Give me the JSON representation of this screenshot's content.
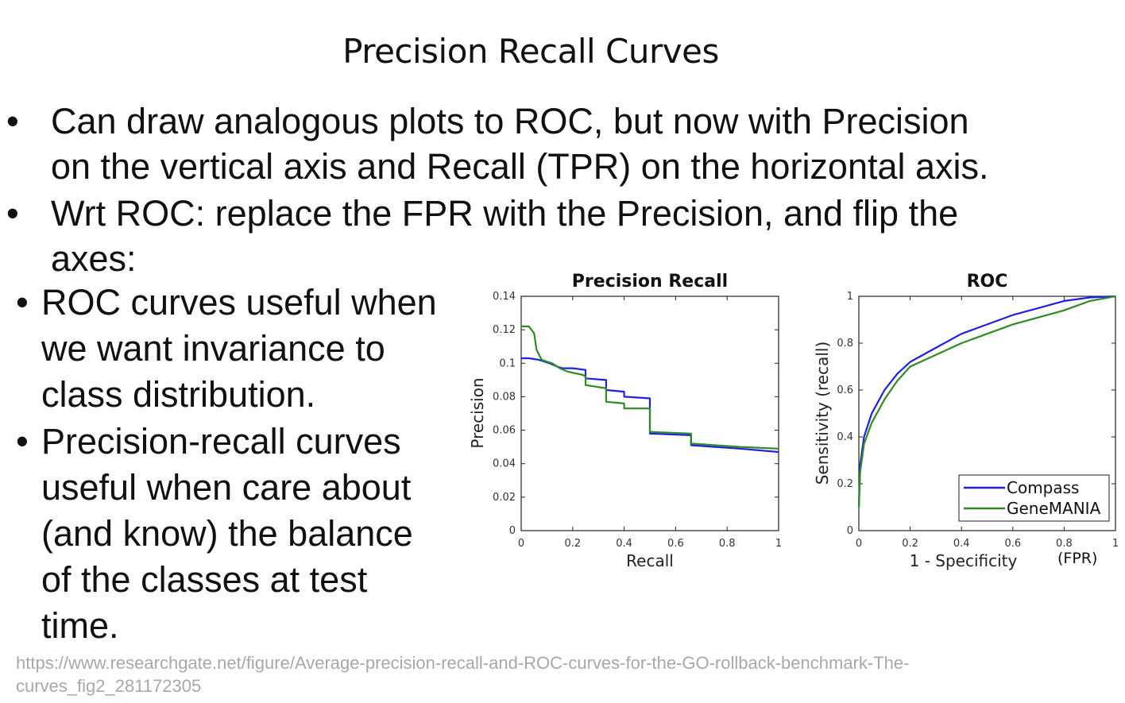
{
  "slide": {
    "title": "Precision Recall Curves",
    "bullets": [
      {
        "marker": "•",
        "lines": [
          "Can draw analogous plots to ROC, but now with Precision",
          "on the vertical axis and Recall (TPR) on the horizontal axis."
        ]
      },
      {
        "marker": "•",
        "lines": [
          "Wrt ROC: replace the FPR with the Precision, and flip the",
          "axes:"
        ]
      }
    ],
    "sub_bullets": [
      {
        "marker": "•",
        "lines": [
          "ROC curves useful when",
          "we want invariance to",
          "class distribution."
        ]
      },
      {
        "marker": "•",
        "lines": [
          "Precision-recall curves",
          "useful when care about",
          "(and know) the balance",
          "of the classes at test",
          "time."
        ]
      }
    ],
    "source_url_lines": [
      "https://www.researchgate.net/figure/Average-precision-recall-and-ROC-curves-for-the-GO-rollback-benchmark-The-",
      "curves_fig2_281172305"
    ]
  },
  "colors": {
    "compass": "#1f1fe8",
    "genemania": "#2e8b22",
    "axis": "#222222",
    "source_text": "#a8a8a8"
  },
  "chart_data": [
    {
      "type": "line",
      "title": "Precision Recall",
      "xlabel": "Recall",
      "ylabel": "Precision",
      "xlim": [
        0,
        1
      ],
      "ylim": [
        0,
        0.14
      ],
      "xticks": [
        "0",
        "0.2",
        "0.4",
        "0.6",
        "0.8",
        "1"
      ],
      "yticks": [
        "0",
        "0.02",
        "0.04",
        "0.06",
        "0.08",
        "0.1",
        "0.12",
        "0.14"
      ],
      "grid": false,
      "series": [
        {
          "name": "Compass",
          "color": "#1f1fe8",
          "x": [
            0,
            0.03,
            0.07,
            0.11,
            0.14,
            0.16,
            0.2,
            0.25,
            0.25,
            0.33,
            0.33,
            0.4,
            0.4,
            0.5,
            0.5,
            0.66,
            0.66,
            0.85,
            1.0
          ],
          "y": [
            0.103,
            0.103,
            0.102,
            0.1,
            0.098,
            0.097,
            0.097,
            0.096,
            0.091,
            0.09,
            0.084,
            0.083,
            0.08,
            0.079,
            0.058,
            0.057,
            0.051,
            0.049,
            0.047
          ]
        },
        {
          "name": "GeneMANIA",
          "color": "#2e8b22",
          "x": [
            0,
            0.03,
            0.05,
            0.06,
            0.08,
            0.12,
            0.15,
            0.18,
            0.24,
            0.25,
            0.25,
            0.33,
            0.33,
            0.4,
            0.4,
            0.5,
            0.5,
            0.66,
            0.66,
            0.85,
            1.0
          ],
          "y": [
            0.122,
            0.122,
            0.118,
            0.108,
            0.102,
            0.1,
            0.097,
            0.095,
            0.093,
            0.092,
            0.087,
            0.085,
            0.077,
            0.076,
            0.073,
            0.073,
            0.059,
            0.058,
            0.052,
            0.05,
            0.049
          ]
        }
      ]
    },
    {
      "type": "line",
      "title": "ROC",
      "xlabel": "1 - Specificity",
      "xlabel_note": "(FPR)",
      "ylabel": "Sensitivity (recall)",
      "xlim": [
        0,
        1
      ],
      "ylim": [
        0,
        1
      ],
      "xticks": [
        "0",
        "0.2",
        "0.4",
        "0.6",
        "0.8",
        "1"
      ],
      "yticks": [
        "0",
        "0.2",
        "0.4",
        "0.6",
        "0.8",
        "1"
      ],
      "grid": false,
      "legend": {
        "position": "bottom-right",
        "entries": [
          "Compass",
          "GeneMANIA"
        ]
      },
      "series": [
        {
          "name": "Compass",
          "color": "#1f1fe8",
          "x": [
            0,
            0.005,
            0.02,
            0.05,
            0.1,
            0.15,
            0.2,
            0.3,
            0.4,
            0.5,
            0.6,
            0.7,
            0.8,
            0.9,
            1.0
          ],
          "y": [
            0.1,
            0.28,
            0.4,
            0.5,
            0.6,
            0.67,
            0.72,
            0.78,
            0.84,
            0.88,
            0.92,
            0.95,
            0.98,
            0.995,
            1.0
          ]
        },
        {
          "name": "GeneMANIA",
          "color": "#2e8b22",
          "x": [
            0,
            0.005,
            0.02,
            0.05,
            0.1,
            0.15,
            0.2,
            0.3,
            0.4,
            0.5,
            0.6,
            0.7,
            0.8,
            0.9,
            1.0
          ],
          "y": [
            0.1,
            0.25,
            0.37,
            0.46,
            0.56,
            0.64,
            0.7,
            0.75,
            0.8,
            0.84,
            0.88,
            0.91,
            0.94,
            0.98,
            1.0
          ]
        }
      ]
    }
  ]
}
